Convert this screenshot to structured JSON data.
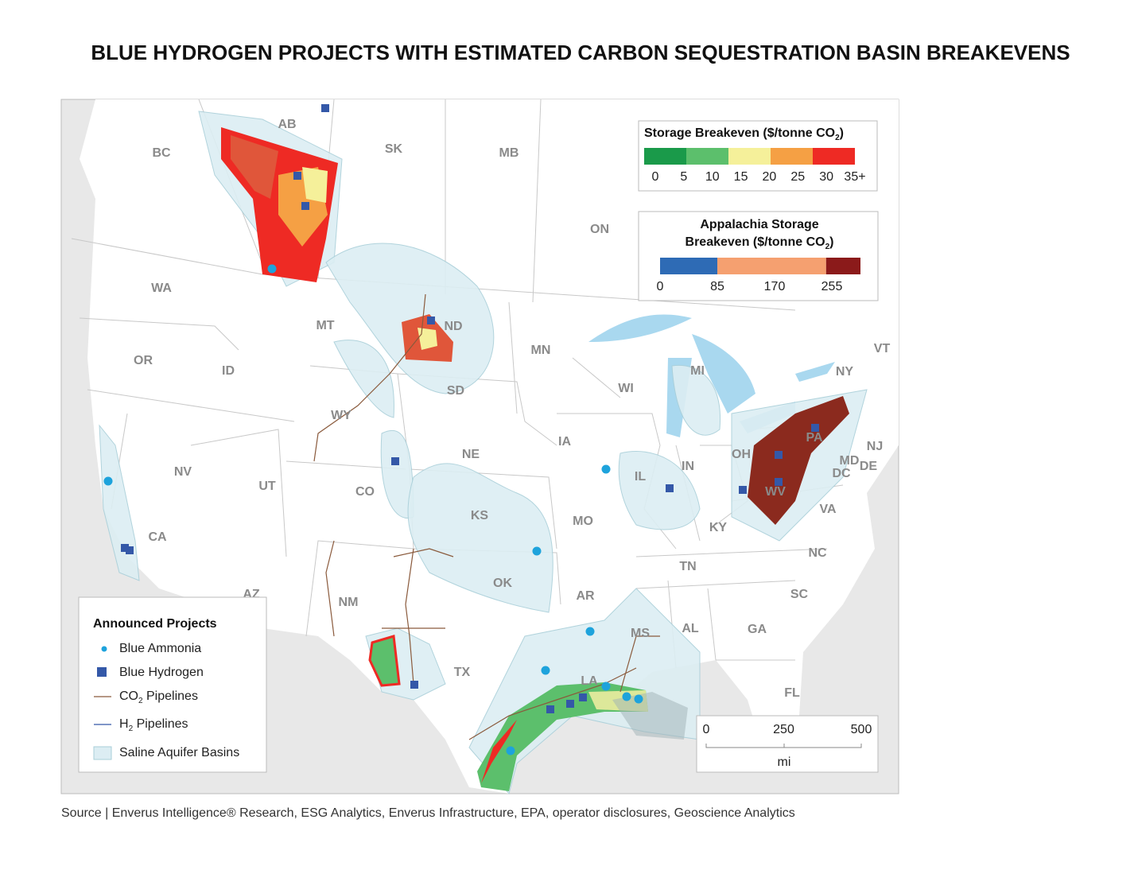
{
  "title": "BLUE HYDROGEN PROJECTS WITH ESTIMATED CARBON SEQUESTRATION BASIN BREAKEVENS",
  "map": {
    "labels": [
      "AB",
      "BC",
      "SK",
      "MB",
      "ON",
      "WA",
      "MT",
      "ND",
      "MN",
      "OR",
      "ID",
      "SD",
      "WI",
      "MI",
      "NY",
      "VT",
      "WY",
      "IA",
      "NE",
      "PA",
      "OH",
      "NJ",
      "MD",
      "DE",
      "NV",
      "UT",
      "CO",
      "IL",
      "IN",
      "DC",
      "WV",
      "KS",
      "MO",
      "VA",
      "KY",
      "CA",
      "NC",
      "TN",
      "AZ",
      "NM",
      "OK",
      "AR",
      "SC",
      "AL",
      "GA",
      "MS",
      "TX",
      "LA",
      "FL"
    ]
  },
  "storage_legend": {
    "title": {
      "text": "Storage Breakeven ($/tonne CO",
      "sub": "2",
      "end": ")"
    },
    "ticks": [
      0,
      5,
      10,
      15,
      20,
      25,
      30,
      "35+"
    ],
    "colors": [
      "#1a9a4a",
      "#5cbf6c",
      "#f5f09a",
      "#f5a044",
      "#ee2a24"
    ]
  },
  "appalachia_legend": {
    "title_line1": "Appalachia Storage",
    "title_line2": {
      "text": "Breakeven ($/tonne CO",
      "sub": "2",
      "end": ")"
    },
    "ticks": [
      0,
      85,
      170,
      255
    ],
    "colors": [
      "#2e6bb5",
      "#f5a070",
      "#8b1a1a"
    ]
  },
  "projects_legend": {
    "title": "Announced Projects",
    "items": [
      {
        "label": "Blue Ammonia"
      },
      {
        "label": "Blue Hydrogen"
      },
      {
        "label": "CO",
        "sub": "2",
        "end": " Pipelines"
      },
      {
        "label": "H",
        "sub": "2",
        "end": " Pipelines"
      },
      {
        "label": "Saline Aquifer Basins"
      }
    ]
  },
  "scale": {
    "ticks": [
      0,
      250,
      500
    ],
    "unit": "mi"
  },
  "source": "Source | Enverus Intelligence® Research, ESG Analytics, Enverus Infrastructure, EPA, operator disclosures, Geoscience Analytics"
}
